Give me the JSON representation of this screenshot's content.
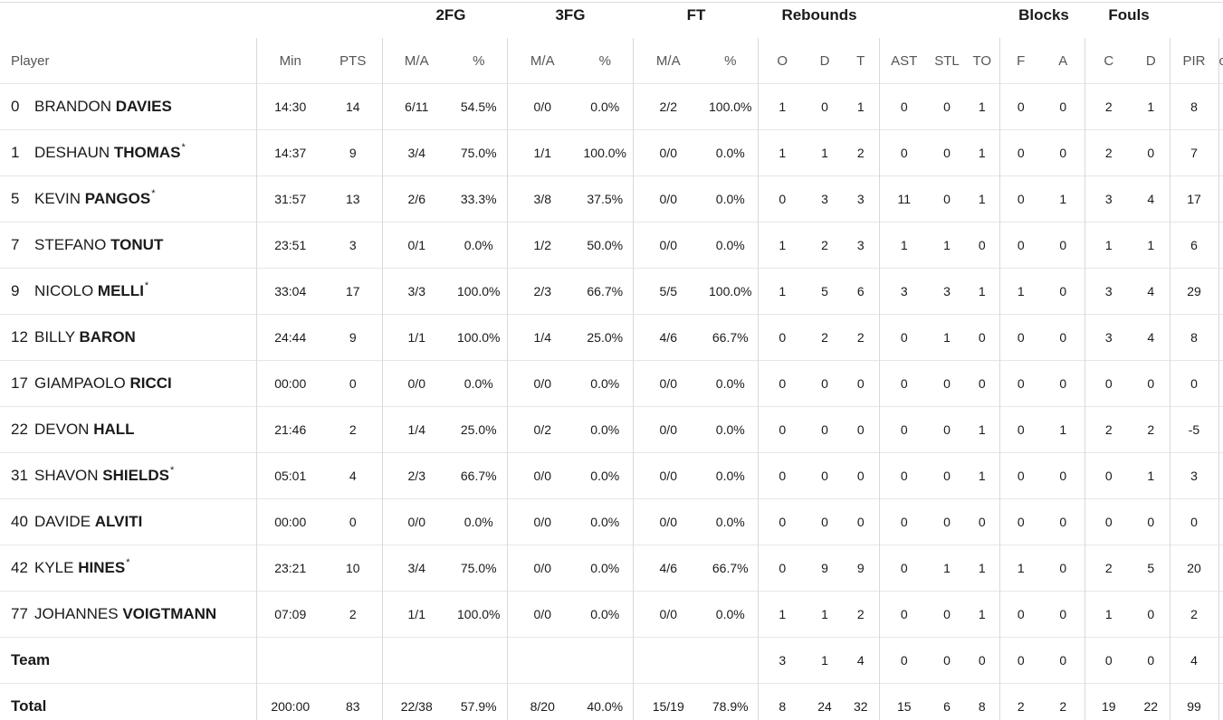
{
  "group_headers": {
    "two_fg": "2FG",
    "three_fg": "3FG",
    "ft": "FT",
    "rebounds": "Rebounds",
    "blocks": "Blocks",
    "fouls": "Fouls"
  },
  "columns": {
    "player": "Player",
    "min": "Min",
    "pts": "PTS",
    "fg2_ma": "M/A",
    "fg2_pct": "%",
    "fg3_ma": "M/A",
    "fg3_pct": "%",
    "ft_ma": "M/A",
    "ft_pct": "%",
    "reb_o": "O",
    "reb_d": "D",
    "reb_t": "T",
    "ast": "AST",
    "stl": "STL",
    "to": "TO",
    "blk_f": "F",
    "blk_a": "A",
    "foul_c": "C",
    "foul_d": "D",
    "pir": "PIR",
    "extra": "c"
  },
  "players": [
    {
      "number": "0",
      "first": "BRANDON",
      "last": "DAVIES",
      "starter": "",
      "min": "14:30",
      "pts": "14",
      "fg2_ma": "6/11",
      "fg2_pct": "54.5%",
      "fg3_ma": "0/0",
      "fg3_pct": "0.0%",
      "ft_ma": "2/2",
      "ft_pct": "100.0%",
      "reb_o": "1",
      "reb_d": "0",
      "reb_t": "1",
      "ast": "0",
      "stl": "0",
      "to": "1",
      "blk_f": "0",
      "blk_a": "0",
      "foul_c": "2",
      "foul_d": "1",
      "pir": "8"
    },
    {
      "number": "1",
      "first": "DESHAUN",
      "last": "THOMAS",
      "starter": "*",
      "min": "14:37",
      "pts": "9",
      "fg2_ma": "3/4",
      "fg2_pct": "75.0%",
      "fg3_ma": "1/1",
      "fg3_pct": "100.0%",
      "ft_ma": "0/0",
      "ft_pct": "0.0%",
      "reb_o": "1",
      "reb_d": "1",
      "reb_t": "2",
      "ast": "0",
      "stl": "0",
      "to": "1",
      "blk_f": "0",
      "blk_a": "0",
      "foul_c": "2",
      "foul_d": "0",
      "pir": "7"
    },
    {
      "number": "5",
      "first": "KEVIN",
      "last": "PANGOS",
      "starter": "*",
      "min": "31:57",
      "pts": "13",
      "fg2_ma": "2/6",
      "fg2_pct": "33.3%",
      "fg3_ma": "3/8",
      "fg3_pct": "37.5%",
      "ft_ma": "0/0",
      "ft_pct": "0.0%",
      "reb_o": "0",
      "reb_d": "3",
      "reb_t": "3",
      "ast": "11",
      "stl": "0",
      "to": "1",
      "blk_f": "0",
      "blk_a": "1",
      "foul_c": "3",
      "foul_d": "4",
      "pir": "17"
    },
    {
      "number": "7",
      "first": "STEFANO",
      "last": "TONUT",
      "starter": "",
      "min": "23:51",
      "pts": "3",
      "fg2_ma": "0/1",
      "fg2_pct": "0.0%",
      "fg3_ma": "1/2",
      "fg3_pct": "50.0%",
      "ft_ma": "0/0",
      "ft_pct": "0.0%",
      "reb_o": "1",
      "reb_d": "2",
      "reb_t": "3",
      "ast": "1",
      "stl": "1",
      "to": "0",
      "blk_f": "0",
      "blk_a": "0",
      "foul_c": "1",
      "foul_d": "1",
      "pir": "6"
    },
    {
      "number": "9",
      "first": "NICOLO",
      "last": "MELLI",
      "starter": "*",
      "min": "33:04",
      "pts": "17",
      "fg2_ma": "3/3",
      "fg2_pct": "100.0%",
      "fg3_ma": "2/3",
      "fg3_pct": "66.7%",
      "ft_ma": "5/5",
      "ft_pct": "100.0%",
      "reb_o": "1",
      "reb_d": "5",
      "reb_t": "6",
      "ast": "3",
      "stl": "3",
      "to": "1",
      "blk_f": "1",
      "blk_a": "0",
      "foul_c": "3",
      "foul_d": "4",
      "pir": "29"
    },
    {
      "number": "12",
      "first": "BILLY",
      "last": "BARON",
      "starter": "",
      "min": "24:44",
      "pts": "9",
      "fg2_ma": "1/1",
      "fg2_pct": "100.0%",
      "fg3_ma": "1/4",
      "fg3_pct": "25.0%",
      "ft_ma": "4/6",
      "ft_pct": "66.7%",
      "reb_o": "0",
      "reb_d": "2",
      "reb_t": "2",
      "ast": "0",
      "stl": "1",
      "to": "0",
      "blk_f": "0",
      "blk_a": "0",
      "foul_c": "3",
      "foul_d": "4",
      "pir": "8"
    },
    {
      "number": "17",
      "first": "GIAMPAOLO",
      "last": "RICCI",
      "starter": "",
      "min": "00:00",
      "pts": "0",
      "fg2_ma": "0/0",
      "fg2_pct": "0.0%",
      "fg3_ma": "0/0",
      "fg3_pct": "0.0%",
      "ft_ma": "0/0",
      "ft_pct": "0.0%",
      "reb_o": "0",
      "reb_d": "0",
      "reb_t": "0",
      "ast": "0",
      "stl": "0",
      "to": "0",
      "blk_f": "0",
      "blk_a": "0",
      "foul_c": "0",
      "foul_d": "0",
      "pir": "0"
    },
    {
      "number": "22",
      "first": "DEVON",
      "last": "HALL",
      "starter": "",
      "min": "21:46",
      "pts": "2",
      "fg2_ma": "1/4",
      "fg2_pct": "25.0%",
      "fg3_ma": "0/2",
      "fg3_pct": "0.0%",
      "ft_ma": "0/0",
      "ft_pct": "0.0%",
      "reb_o": "0",
      "reb_d": "0",
      "reb_t": "0",
      "ast": "0",
      "stl": "0",
      "to": "1",
      "blk_f": "0",
      "blk_a": "1",
      "foul_c": "2",
      "foul_d": "2",
      "pir": "-5"
    },
    {
      "number": "31",
      "first": "SHAVON",
      "last": "SHIELDS",
      "starter": "*",
      "min": "05:01",
      "pts": "4",
      "fg2_ma": "2/3",
      "fg2_pct": "66.7%",
      "fg3_ma": "0/0",
      "fg3_pct": "0.0%",
      "ft_ma": "0/0",
      "ft_pct": "0.0%",
      "reb_o": "0",
      "reb_d": "0",
      "reb_t": "0",
      "ast": "0",
      "stl": "0",
      "to": "1",
      "blk_f": "0",
      "blk_a": "0",
      "foul_c": "0",
      "foul_d": "1",
      "pir": "3"
    },
    {
      "number": "40",
      "first": "DAVIDE",
      "last": "ALVITI",
      "starter": "",
      "min": "00:00",
      "pts": "0",
      "fg2_ma": "0/0",
      "fg2_pct": "0.0%",
      "fg3_ma": "0/0",
      "fg3_pct": "0.0%",
      "ft_ma": "0/0",
      "ft_pct": "0.0%",
      "reb_o": "0",
      "reb_d": "0",
      "reb_t": "0",
      "ast": "0",
      "stl": "0",
      "to": "0",
      "blk_f": "0",
      "blk_a": "0",
      "foul_c": "0",
      "foul_d": "0",
      "pir": "0"
    },
    {
      "number": "42",
      "first": "KYLE",
      "last": "HINES",
      "starter": "*",
      "min": "23:21",
      "pts": "10",
      "fg2_ma": "3/4",
      "fg2_pct": "75.0%",
      "fg3_ma": "0/0",
      "fg3_pct": "0.0%",
      "ft_ma": "4/6",
      "ft_pct": "66.7%",
      "reb_o": "0",
      "reb_d": "9",
      "reb_t": "9",
      "ast": "0",
      "stl": "1",
      "to": "1",
      "blk_f": "1",
      "blk_a": "0",
      "foul_c": "2",
      "foul_d": "5",
      "pir": "20"
    },
    {
      "number": "77",
      "first": "JOHANNES",
      "last": "VOIGTMANN",
      "starter": "",
      "min": "07:09",
      "pts": "2",
      "fg2_ma": "1/1",
      "fg2_pct": "100.0%",
      "fg3_ma": "0/0",
      "fg3_pct": "0.0%",
      "ft_ma": "0/0",
      "ft_pct": "0.0%",
      "reb_o": "1",
      "reb_d": "1",
      "reb_t": "2",
      "ast": "0",
      "stl": "0",
      "to": "1",
      "blk_f": "0",
      "blk_a": "0",
      "foul_c": "1",
      "foul_d": "0",
      "pir": "2"
    }
  ],
  "team_row": {
    "label": "Team",
    "min": "",
    "pts": "",
    "fg2_ma": "",
    "fg2_pct": "",
    "fg3_ma": "",
    "fg3_pct": "",
    "ft_ma": "",
    "ft_pct": "",
    "reb_o": "3",
    "reb_d": "1",
    "reb_t": "4",
    "ast": "0",
    "stl": "0",
    "to": "0",
    "blk_f": "0",
    "blk_a": "0",
    "foul_c": "0",
    "foul_d": "0",
    "pir": "4"
  },
  "total_row": {
    "label": "Total",
    "min": "200:00",
    "pts": "83",
    "fg2_ma": "22/38",
    "fg2_pct": "57.9%",
    "fg3_ma": "8/20",
    "fg3_pct": "40.0%",
    "ft_ma": "15/19",
    "ft_pct": "78.9%",
    "reb_o": "8",
    "reb_d": "24",
    "reb_t": "32",
    "ast": "15",
    "stl": "6",
    "to": "8",
    "blk_f": "2",
    "blk_a": "2",
    "foul_c": "19",
    "foul_d": "22",
    "pir": "99"
  }
}
